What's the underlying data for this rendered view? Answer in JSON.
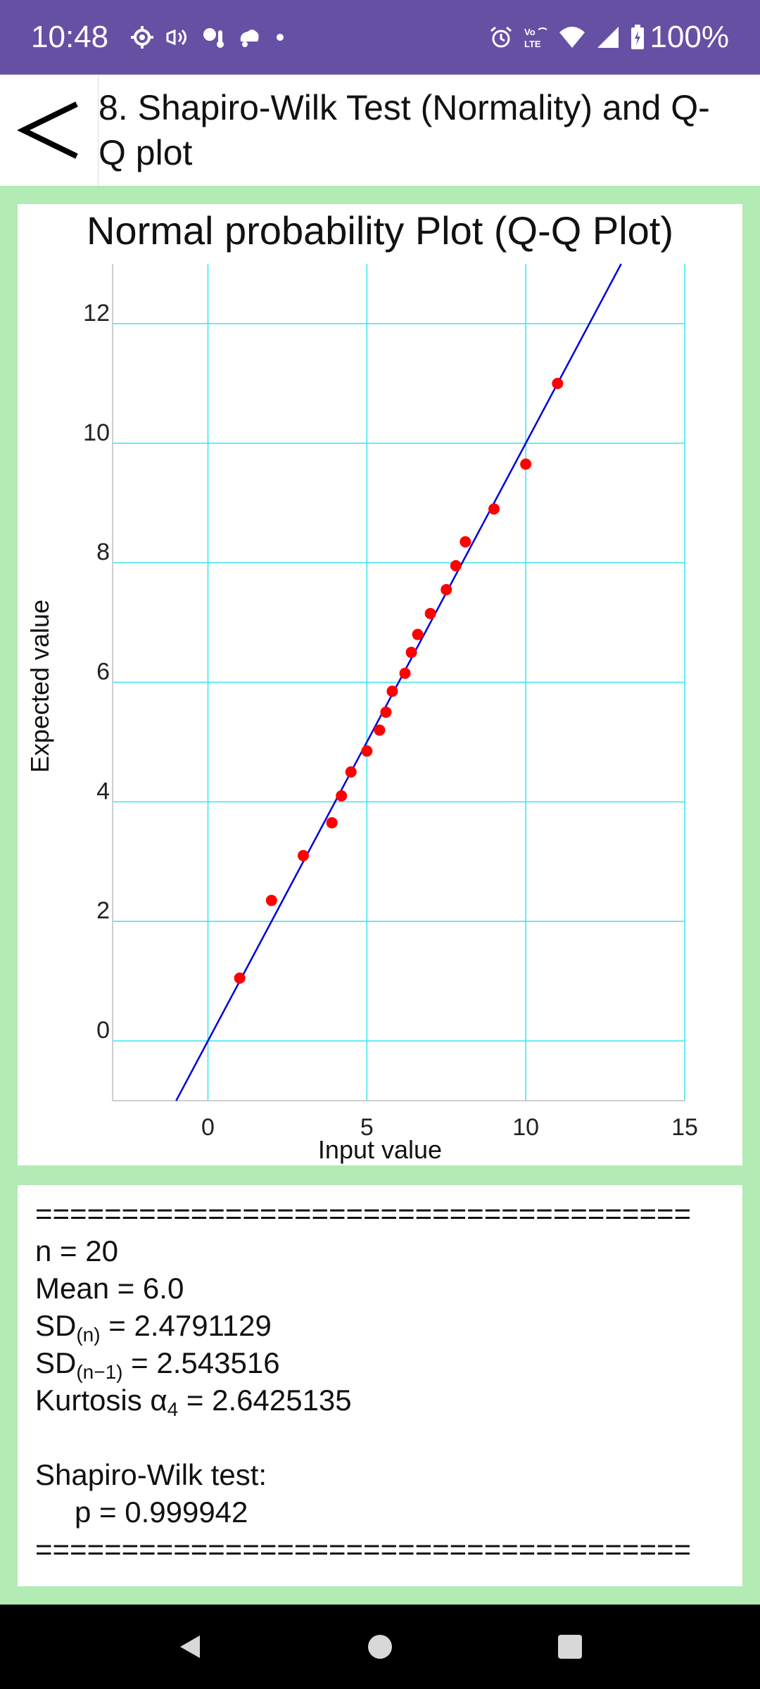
{
  "status_bar": {
    "time": "10:48",
    "battery": "100%",
    "left_icons": [
      "settings-icon",
      "cast-icon",
      "weather-icon",
      "notification-icon",
      "dot-icon"
    ],
    "right_icons": [
      "alarm-icon",
      "volte-icon",
      "wifi-icon",
      "signal-icon",
      "battery-charging-icon"
    ]
  },
  "app_bar": {
    "back_icon": "chevron-left-icon",
    "title": "8. Shapiro-Wilk Test (Normality) and Q-Q plot"
  },
  "chart_data": {
    "type": "scatter",
    "title": "Normal probability Plot (Q-Q Plot)",
    "xlabel": "Input value",
    "ylabel": "Expected value",
    "xlim": [
      -3,
      15
    ],
    "ylim": [
      -1,
      13
    ],
    "x_ticks": [
      "0",
      "5",
      "10",
      "15"
    ],
    "y_ticks": [
      "0",
      "2",
      "4",
      "6",
      "8",
      "10",
      "12"
    ],
    "grid": true,
    "colors": {
      "points": "#ff0000",
      "line": "#0000dd",
      "grid": "#33e6f0",
      "axis": "#bdbdbd"
    },
    "series": [
      {
        "type": "scatter",
        "x": [
          1.0,
          2.0,
          3.0,
          3.9,
          4.2,
          4.5,
          5.0,
          5.4,
          5.6,
          5.8,
          6.2,
          6.4,
          6.6,
          7.0,
          7.5,
          7.8,
          8.1,
          9.0,
          10.0,
          11.0
        ],
        "y": [
          1.05,
          2.35,
          3.1,
          3.65,
          4.1,
          4.5,
          4.85,
          5.2,
          5.5,
          5.85,
          6.15,
          6.5,
          6.8,
          7.15,
          7.55,
          7.95,
          8.35,
          8.9,
          9.65,
          11.0
        ]
      },
      {
        "type": "line",
        "x": [
          -1.0,
          13.0
        ],
        "y": [
          -1.0,
          13.0
        ]
      }
    ]
  },
  "results": {
    "separator": "======================================",
    "n_line": "n = 20",
    "mean_line": "Mean = 6.0",
    "sdn_label": "SD",
    "sdn_sub": "(n)",
    "sdn_value": " = 2.4791129",
    "sdn1_label": "SD",
    "sdn1_sub": "(n−1)",
    "sdn1_value": " = 2.543516",
    "kurtosis_label": "Kurtosis α",
    "kurtosis_sub": "4",
    "kurtosis_value": " = 2.6425135",
    "shapiro_label": "Shapiro-Wilk test:",
    "p_line": "p = 0.999942"
  },
  "nav_bar": {
    "back_icon": "nav-back-icon",
    "home_icon": "nav-home-icon",
    "recents_icon": "nav-recents-icon"
  }
}
